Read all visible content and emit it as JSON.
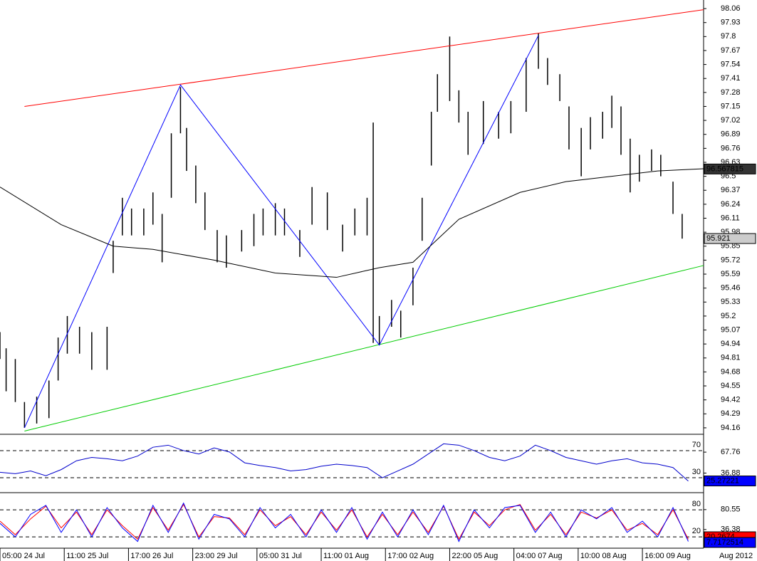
{
  "chart_data": [
    {
      "type": "ohlc",
      "color": "#000000",
      "x": [
        0,
        2,
        5,
        8,
        12,
        16,
        19,
        22,
        26,
        30,
        35,
        37,
        40,
        43,
        47,
        50,
        53,
        56,
        59,
        61,
        64,
        67,
        71,
        74,
        79,
        83,
        86,
        90,
        93,
        98,
        102,
        107,
        112,
        116,
        120,
        122,
        124,
        128,
        131,
        135,
        138,
        141,
        143,
        147,
        150,
        153,
        158,
        163,
        167,
        172,
        176,
        179,
        183,
        186,
        190,
        193,
        197,
        200,
        203,
        206,
        209,
        213,
        216,
        220,
        223
      ],
      "high": [
        95.05,
        94.9,
        94.8,
        94.4,
        94.45,
        94.6,
        95.0,
        95.2,
        95.1,
        95.05,
        95.1,
        95.9,
        96.3,
        96.2,
        96.2,
        96.35,
        96.15,
        96.9,
        97.33,
        96.95,
        96.6,
        96.35,
        96.0,
        95.95,
        96.0,
        96.15,
        96.2,
        96.25,
        96.2,
        96.0,
        96.4,
        96.35,
        96.05,
        96.2,
        96.3,
        97.0,
        95.2,
        95.35,
        95.25,
        95.65,
        96.3,
        97.1,
        97.45,
        97.8,
        97.3,
        97.1,
        97.2,
        97.1,
        97.2,
        97.6,
        97.83,
        97.6,
        97.45,
        97.15,
        96.95,
        97.05,
        97.1,
        97.25,
        97.15,
        96.85,
        96.7,
        96.75,
        96.7,
        96.45,
        96.15
      ],
      "low": [
        94.8,
        94.5,
        94.4,
        94.16,
        94.2,
        94.25,
        94.6,
        94.85,
        94.85,
        94.7,
        94.7,
        95.6,
        95.95,
        95.95,
        95.95,
        96.05,
        95.7,
        96.3,
        96.9,
        96.55,
        96.25,
        96.0,
        95.7,
        95.65,
        95.8,
        95.85,
        95.95,
        95.95,
        95.95,
        95.75,
        96.05,
        96.0,
        95.8,
        95.95,
        95.95,
        94.95,
        94.93,
        95.1,
        95.0,
        95.3,
        95.9,
        96.6,
        97.1,
        97.2,
        97.0,
        96.7,
        96.8,
        96.85,
        96.9,
        97.1,
        97.5,
        97.35,
        97.2,
        96.75,
        96.5,
        96.75,
        96.85,
        96.95,
        96.7,
        96.35,
        96.45,
        96.55,
        96.5,
        96.15,
        95.92
      ],
      "series": [
        {
          "color": "#ff0000",
          "x": [
            8,
            230
          ],
          "values": [
            97.15,
            98.05
          ]
        },
        {
          "color": "#00cc00",
          "x": [
            8,
            230
          ],
          "values": [
            94.13,
            95.67
          ]
        },
        {
          "color": "#0000ff",
          "x": [
            8,
            59,
            124,
            176
          ],
          "values": [
            94.16,
            97.35,
            94.93,
            97.81
          ]
        },
        {
          "color": "#000000",
          "x": [
            0,
            20,
            37,
            50,
            70,
            90,
            110,
            124,
            135,
            150,
            170,
            185,
            200,
            215,
            230
          ],
          "values": [
            96.4,
            96.05,
            95.85,
            95.82,
            95.72,
            95.6,
            95.56,
            95.65,
            95.7,
            96.1,
            96.35,
            96.45,
            96.5,
            96.55,
            96.57
          ]
        }
      ],
      "price_marks": [
        {
          "value": 96.567815,
          "color": "#333333"
        },
        {
          "value": 95.921,
          "color": "#cccccc"
        }
      ],
      "xlim": [
        0,
        230
      ],
      "ylim": [
        94.1,
        98.14
      ],
      "yticks": [
        98.06,
        97.93,
        97.8,
        97.67,
        97.54,
        97.41,
        97.28,
        97.15,
        97.02,
        96.89,
        96.76,
        96.63,
        96.5,
        96.37,
        96.24,
        96.11,
        95.98,
        95.85,
        95.72,
        95.59,
        95.46,
        95.33,
        95.2,
        95.07,
        94.94,
        94.81,
        94.68,
        94.55,
        94.42,
        94.29,
        94.16
      ],
      "xticks": [
        {
          "value": 0,
          "label": "05:00 24 Jul"
        },
        {
          "value": 21,
          "label": "11:00 25 Jul"
        },
        {
          "value": 42,
          "label": "17:00 26 Jul"
        },
        {
          "value": 63,
          "label": "23:00 29 Jul"
        },
        {
          "value": 84,
          "label": "05:00 31 Jul"
        },
        {
          "value": 105,
          "label": "11:00 01 Aug"
        },
        {
          "value": 126,
          "label": "17:00 02 Aug"
        },
        {
          "value": 147,
          "label": "22:00 05 Aug"
        },
        {
          "value": 168,
          "label": "04:00 07 Aug"
        },
        {
          "value": 189,
          "label": "10:00 08 Aug"
        },
        {
          "value": 210,
          "label": "16:00 09 Aug"
        }
      ],
      "x_caption": "Aug 2012"
    },
    {
      "type": "line",
      "x": [
        0,
        5,
        10,
        15,
        20,
        25,
        30,
        35,
        40,
        45,
        50,
        55,
        60,
        65,
        70,
        75,
        80,
        85,
        90,
        95,
        100,
        105,
        110,
        115,
        120,
        125,
        130,
        135,
        140,
        145,
        150,
        155,
        160,
        165,
        170,
        175,
        180,
        185,
        190,
        195,
        200,
        205,
        210,
        215,
        220,
        225
      ],
      "series": [
        {
          "color": "#0000cc",
          "values": [
            38,
            36,
            40,
            33,
            42,
            55,
            60,
            58,
            55,
            62,
            75,
            78,
            70,
            65,
            74,
            68,
            52,
            48,
            45,
            40,
            42,
            47,
            50,
            48,
            45,
            30,
            40,
            50,
            65,
            80,
            78,
            70,
            60,
            55,
            62,
            78,
            70,
            60,
            55,
            50,
            55,
            58,
            52,
            50,
            45,
            25
          ]
        }
      ],
      "xlim": [
        0,
        230
      ],
      "ylim": [
        8,
        92
      ],
      "levels": [
        70,
        30
      ],
      "yticks": [
        67.76,
        36.88
      ],
      "price_marks": [
        {
          "value": 25.27221,
          "color": "#0000ff"
        }
      ]
    },
    {
      "type": "line",
      "x": [
        0,
        5,
        10,
        15,
        20,
        25,
        30,
        35,
        40,
        45,
        50,
        55,
        60,
        65,
        70,
        75,
        80,
        85,
        90,
        95,
        100,
        105,
        110,
        115,
        120,
        125,
        130,
        135,
        140,
        145,
        150,
        155,
        160,
        165,
        170,
        175,
        180,
        185,
        190,
        195,
        200,
        205,
        210,
        215,
        220,
        225
      ],
      "series": [
        {
          "color": "#ff0000",
          "values": [
            55,
            25,
            60,
            88,
            40,
            75,
            25,
            80,
            45,
            15,
            85,
            35,
            92,
            20,
            65,
            62,
            25,
            80,
            45,
            65,
            25,
            75,
            35,
            80,
            20,
            70,
            25,
            75,
            30,
            88,
            15,
            75,
            45,
            80,
            92,
            35,
            70,
            25,
            75,
            62,
            80,
            35,
            50,
            25,
            80,
            15
          ]
        },
        {
          "color": "#0000ff",
          "values": [
            50,
            20,
            70,
            90,
            30,
            80,
            20,
            85,
            40,
            10,
            90,
            30,
            95,
            15,
            70,
            60,
            20,
            85,
            40,
            70,
            20,
            80,
            30,
            85,
            15,
            75,
            20,
            80,
            25,
            90,
            10,
            80,
            40,
            85,
            90,
            30,
            75,
            20,
            80,
            60,
            85,
            30,
            55,
            20,
            85,
            10
          ]
        }
      ],
      "xlim": [
        0,
        230
      ],
      "ylim": [
        -5,
        115
      ],
      "levels": [
        80,
        20
      ],
      "yticks": [
        80.55,
        36.38
      ],
      "price_marks": [
        {
          "value": 20.2674,
          "color": "#ff0000"
        },
        {
          "value": 7.7172514,
          "color": "#0000ff"
        }
      ]
    }
  ]
}
